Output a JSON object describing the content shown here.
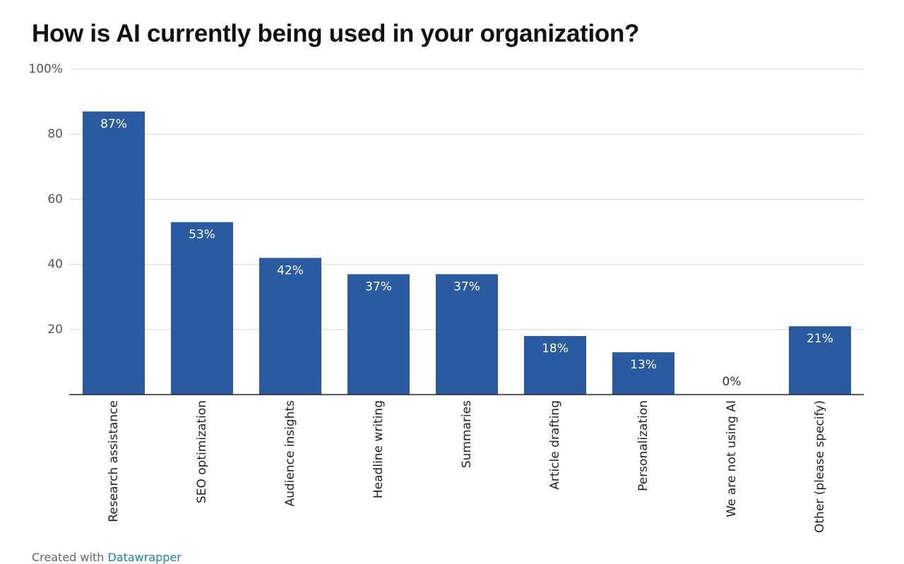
{
  "chart_data": {
    "type": "bar",
    "title": "How is AI currently being used in your organization?",
    "categories": [
      "Research assistance",
      "SEO optimization",
      "Audience insights",
      "Headline writing",
      "Summaries",
      "Article drafting",
      "Personalization",
      "We are not using AI",
      "Other (please specify)"
    ],
    "values": [
      87,
      53,
      42,
      37,
      37,
      18,
      13,
      0,
      21
    ],
    "value_labels": [
      "87%",
      "53%",
      "42%",
      "37%",
      "37%",
      "18%",
      "13%",
      "0%",
      "21%"
    ],
    "y_ticks": [
      20,
      40,
      60,
      80,
      100
    ],
    "y_tick_labels": [
      "20",
      "40",
      "60",
      "80",
      "100%"
    ],
    "ylim": [
      0,
      100
    ],
    "xlabel": "",
    "ylabel": "",
    "grid": true,
    "legend": "none",
    "bar_color": "#2a5aa0"
  },
  "footer": {
    "prefix": "Created with",
    "link": "Datawrapper"
  }
}
